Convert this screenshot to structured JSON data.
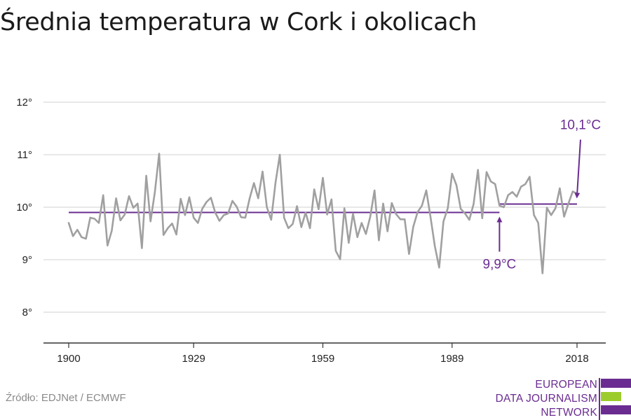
{
  "title": "Średnia temperatura w Cork i okolicach",
  "source": "Źródło: EDJNet / ECMWF",
  "logo": {
    "lines": [
      "EUROPEAN",
      "DATA JOURNALISM",
      "NETWORK"
    ],
    "colors": {
      "purple": "#6a2c91",
      "green": "#9ccc2b"
    }
  },
  "colors": {
    "series": "#a0a0a0",
    "reference": "#6a2c91",
    "grid": "#d9d9d9",
    "axis": "#333333"
  },
  "chart_data": {
    "type": "line",
    "title": "Średnia temperatura w Cork i okolicach",
    "xlabel": "",
    "ylabel": "",
    "xlim": [
      1900,
      2019
    ],
    "ylim": [
      7.5,
      12
    ],
    "y_ticks": [
      {
        "value": 8,
        "label": "8°"
      },
      {
        "value": 9,
        "label": "9°"
      },
      {
        "value": 10,
        "label": "10°"
      },
      {
        "value": 11,
        "label": "11°"
      },
      {
        "value": 12,
        "label": "12°"
      }
    ],
    "x_ticks": [
      {
        "value": 1900,
        "label": "1900"
      },
      {
        "value": 1929,
        "label": "1929"
      },
      {
        "value": 1959,
        "label": "1959"
      },
      {
        "value": 1989,
        "label": "1989"
      },
      {
        "value": 2018,
        "label": "2018"
      }
    ],
    "grid": true,
    "legend": "none",
    "series": [
      {
        "x": [
          1900,
          1901,
          1902,
          1903,
          1904,
          1905,
          1906,
          1907,
          1908,
          1909,
          1910,
          1911,
          1912,
          1913,
          1914,
          1915,
          1916,
          1917,
          1918,
          1919,
          1920,
          1921,
          1922,
          1923,
          1924,
          1925,
          1926,
          1927,
          1928,
          1929,
          1930,
          1931,
          1932,
          1933,
          1934,
          1935,
          1936,
          1937,
          1938,
          1939,
          1940,
          1941,
          1942,
          1943,
          1944,
          1945,
          1946,
          1947,
          1948,
          1949,
          1950,
          1951,
          1952,
          1953,
          1954,
          1955,
          1956,
          1957,
          1958,
          1959,
          1960,
          1961,
          1962,
          1963,
          1964,
          1965,
          1966,
          1967,
          1968,
          1969,
          1970,
          1971,
          1972,
          1973,
          1974,
          1975,
          1976,
          1977,
          1978,
          1979,
          1980,
          1981,
          1982,
          1983,
          1984,
          1985,
          1986,
          1987,
          1988,
          1989,
          1990,
          1991,
          1992,
          1993,
          1994,
          1995,
          1996,
          1997,
          1998,
          1999,
          2000,
          2001,
          2002,
          2003,
          2004,
          2005,
          2006,
          2007,
          2008,
          2009,
          2010,
          2011,
          2012,
          2013,
          2014,
          2015,
          2016,
          2017,
          2018
        ],
        "values": [
          9.7,
          9.45,
          9.57,
          9.43,
          9.4,
          9.8,
          9.78,
          9.7,
          10.23,
          9.27,
          9.55,
          10.17,
          9.75,
          9.86,
          10.21,
          9.99,
          10.07,
          9.22,
          10.6,
          9.73,
          10.29,
          11.02,
          9.47,
          9.6,
          9.69,
          9.48,
          10.16,
          9.85,
          10.19,
          9.8,
          9.7,
          9.97,
          10.1,
          10.18,
          9.9,
          9.74,
          9.85,
          9.88,
          10.12,
          10.01,
          9.81,
          9.8,
          10.17,
          10.46,
          10.17,
          10.68,
          10.0,
          9.76,
          10.46,
          11.0,
          9.8,
          9.6,
          9.68,
          10.02,
          9.62,
          9.9,
          9.6,
          10.34,
          9.96,
          10.56,
          9.86,
          10.15,
          9.17,
          9.01,
          9.98,
          9.32,
          9.88,
          9.43,
          9.7,
          9.49,
          9.82,
          10.32,
          9.37,
          10.07,
          9.54,
          10.08,
          9.87,
          9.77,
          9.77,
          9.11,
          9.63,
          9.91,
          10.03,
          10.32,
          9.81,
          9.26,
          8.85,
          9.73,
          9.98,
          10.64,
          10.42,
          9.97,
          9.88,
          9.76,
          10.06,
          10.71,
          9.79,
          10.67,
          10.49,
          10.44,
          10.03,
          10.0,
          10.23,
          10.29,
          10.2,
          10.39,
          10.44,
          10.58,
          9.85,
          9.7,
          8.74,
          9.99,
          9.85,
          9.98,
          10.36,
          9.82,
          10.07,
          10.3,
          10.26
        ]
      }
    ],
    "reference_lines": [
      {
        "x_start": 1900,
        "x_end": 2000,
        "value": 9.9
      },
      {
        "x_start": 2000,
        "x_end": 2018,
        "value": 10.06
      }
    ],
    "annotations": [
      {
        "text": "9,9°C",
        "x": 2000,
        "y": 9.9,
        "position": "below"
      },
      {
        "text": "10,1°C",
        "x": 2018,
        "y": 10.06,
        "position": "above"
      }
    ]
  }
}
